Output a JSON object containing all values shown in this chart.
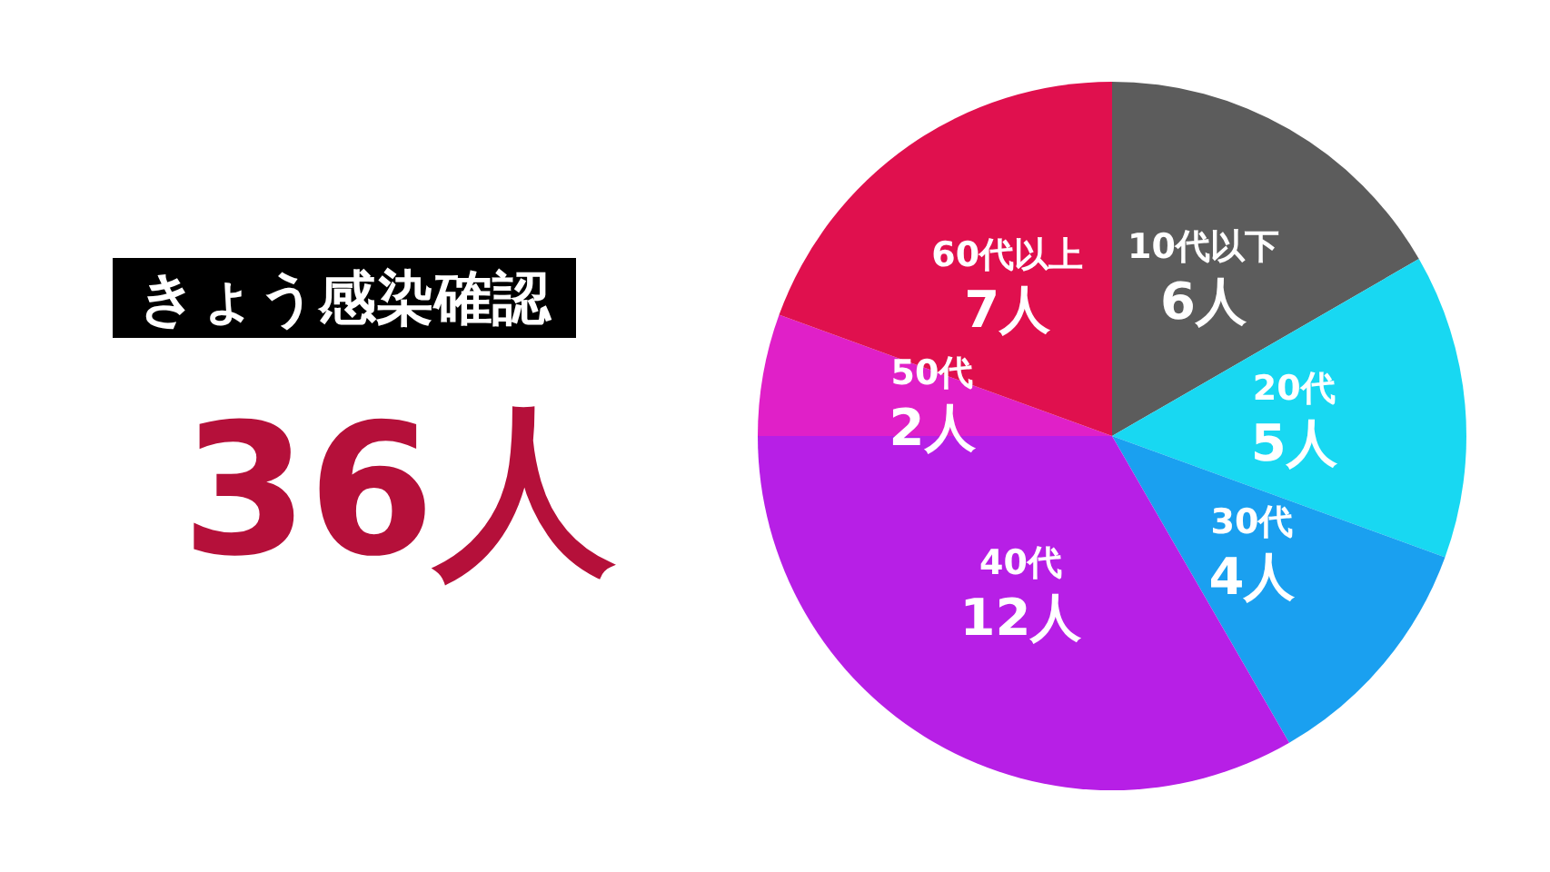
{
  "chart_data": {
    "type": "pie",
    "title": "きょう感染確認",
    "subtitle": "36人",
    "categories": [
      "10代以下",
      "20代",
      "30代",
      "40代",
      "50代",
      "60代以上"
    ],
    "values": [
      6,
      5,
      4,
      12,
      2,
      7
    ],
    "value_labels": [
      "6人",
      "5人",
      "4人",
      "12人",
      "2人",
      "7人"
    ],
    "colors": [
      "#5c5c5c",
      "#18d8f2",
      "#1aa0f0",
      "#b71fe6",
      "#e020c8",
      "#e0104e"
    ]
  }
}
